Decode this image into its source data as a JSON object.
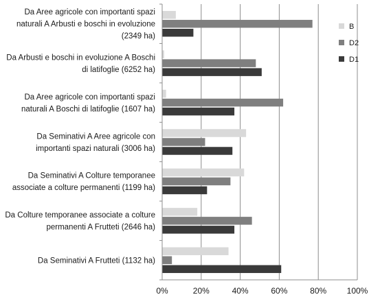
{
  "chart_data": {
    "type": "bar",
    "orientation": "horizontal",
    "categories": [
      "Da Aree agricole con importanti spazi naturali A  Arbusti e boschi in evoluzione (2349 ha)",
      "Da Arbusti e boschi in evoluzione  A Boschi di latifoglie (6252 ha)",
      "Da Aree agricole con importanti spazi naturali A Boschi di latifoglie (1607 ha)",
      "Da Seminativi A Aree agricole con importanti spazi naturali (3006 ha)",
      "Da Seminativi A  Colture temporanee associate a colture permanenti (1199 ha)",
      "Da Colture temporanee associate a colture permanenti A Frutteti (2646 ha)",
      "Da Seminativi A Frutteti (1132 ha)"
    ],
    "category_lines": [
      [
        "Da Aree agricole con importanti spazi",
        "naturali A  Arbusti e boschi in evoluzione",
        "(2349 ha)"
      ],
      [
        "Da Arbusti e boschi in evoluzione  A Boschi",
        "di latifoglie (6252 ha)"
      ],
      [
        "Da Aree agricole con importanti spazi",
        "naturali A Boschi di latifoglie (1607 ha)"
      ],
      [
        "Da Seminativi A Aree agricole con",
        "importanti spazi naturali (3006 ha)"
      ],
      [
        "Da Seminativi A  Colture temporanee",
        "associate a colture permanenti (1199 ha)"
      ],
      [
        "Da Colture temporanee associate a colture",
        "permanenti A Frutteti (2646 ha)"
      ],
      [
        "Da Seminativi A Frutteti (1132 ha)"
      ]
    ],
    "series": [
      {
        "name": "B",
        "color": "#d9d9d9",
        "values": [
          7,
          1,
          2,
          43,
          42,
          18,
          34
        ]
      },
      {
        "name": "D2",
        "color": "#7f7f7f",
        "values": [
          77,
          48,
          62,
          22,
          35,
          46,
          5
        ]
      },
      {
        "name": "D1",
        "color": "#3a3a3a",
        "values": [
          16,
          51,
          37,
          36,
          23,
          37,
          61
        ]
      }
    ],
    "xlim": [
      0,
      100
    ],
    "x_ticks": [
      "0%",
      "20%",
      "40%",
      "60%",
      "80%",
      "100%"
    ],
    "grid": true,
    "legend_position": "top-right",
    "title": "",
    "xlabel": "",
    "ylabel": ""
  }
}
